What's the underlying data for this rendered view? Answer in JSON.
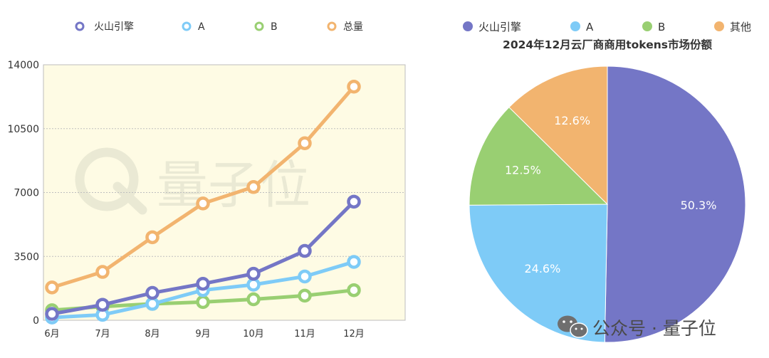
{
  "line_chart": {
    "legend": [
      "火山引擎",
      "A",
      "B",
      "总量"
    ],
    "colors": {
      "火山引擎": "#7476c6",
      "A": "#7ecbf7",
      "B": "#99cf72",
      "总量": "#f2b46f",
      "plot_bg": "#fefbe4",
      "grid": "#bfbfbf"
    }
  },
  "pie_chart": {
    "legend": [
      "火山引擎",
      "A",
      "B",
      "其他"
    ],
    "colors": [
      "#7476c6",
      "#7ecbf7",
      "#99cf72",
      "#f2b46f"
    ]
  },
  "watermark": {
    "text": "量子位"
  },
  "footer": {
    "brand": "公众号 · 量子位",
    "icon": "wechat-icon"
  },
  "chart_data": [
    {
      "type": "line",
      "categories": [
        "6月",
        "7月",
        "8月",
        "9月",
        "10月",
        "11月",
        "12月"
      ],
      "yticks": [
        "0",
        "3500",
        "7000",
        "10500",
        "14000"
      ],
      "ylim": [
        0,
        14000
      ],
      "grid": true,
      "legend_position": "top",
      "series": [
        {
          "name": "火山引擎",
          "values": [
            350,
            850,
            1500,
            2000,
            2550,
            3800,
            6500
          ]
        },
        {
          "name": "A",
          "values": [
            150,
            300,
            900,
            1650,
            1950,
            2400,
            3200
          ]
        },
        {
          "name": "B",
          "values": [
            550,
            750,
            900,
            1000,
            1150,
            1350,
            1650
          ]
        },
        {
          "name": "总量",
          "values": [
            1800,
            2650,
            4550,
            6400,
            7300,
            9700,
            12800
          ]
        }
      ]
    },
    {
      "type": "pie",
      "title": "2024年12月云厂商商用tokens市场份额",
      "legend_position": "top",
      "labels": [
        "火山引擎",
        "A",
        "B",
        "其他"
      ],
      "values": [
        50.3,
        24.6,
        12.5,
        12.6
      ],
      "value_labels": [
        "50.3%",
        "24.6%",
        "12.5%",
        "12.6%"
      ]
    }
  ]
}
